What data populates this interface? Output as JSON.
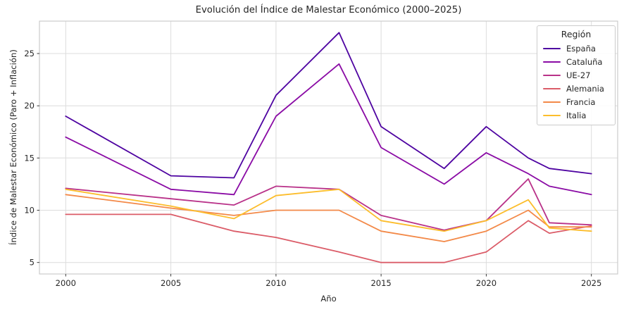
{
  "title": "Evolución del Índice de Malestar Económico (2000–2025)",
  "chart_data": {
    "type": "line",
    "title": "Evolución del Índice de Malestar Económico (2000–2025)",
    "xlabel": "Año",
    "ylabel": "Índice de Malestar Económico (Paro + Inflación)",
    "x": [
      2000,
      2005,
      2008,
      2010,
      2013,
      2015,
      2018,
      2020,
      2022,
      2023,
      2025
    ],
    "series": [
      {
        "name": "España",
        "color": "#4e03a1",
        "values": [
          19.0,
          13.3,
          13.1,
          21.0,
          27.0,
          18.0,
          14.0,
          18.0,
          15.0,
          14.0,
          13.5
        ]
      },
      {
        "name": "Cataluña",
        "color": "#8a0ba5",
        "values": [
          17.0,
          12.0,
          11.5,
          19.0,
          24.0,
          16.0,
          12.5,
          15.5,
          13.5,
          12.3,
          11.5
        ]
      },
      {
        "name": "UE-27",
        "color": "#b93289",
        "values": [
          12.1,
          11.1,
          10.5,
          12.3,
          12.0,
          9.5,
          8.1,
          9.0,
          13.0,
          8.8,
          8.6
        ]
      },
      {
        "name": "Alemania",
        "color": "#db5c68",
        "values": [
          9.6,
          9.6,
          8.0,
          7.4,
          6.0,
          5.0,
          5.0,
          6.0,
          9.0,
          7.8,
          8.5
        ]
      },
      {
        "name": "Francia",
        "color": "#f38948",
        "values": [
          11.5,
          10.2,
          9.5,
          10.0,
          10.0,
          8.0,
          7.0,
          8.0,
          10.0,
          8.4,
          8.4
        ]
      },
      {
        "name": "Italia",
        "color": "#fcbd2c",
        "values": [
          12.0,
          10.4,
          9.2,
          11.4,
          12.0,
          9.0,
          8.0,
          9.0,
          11.0,
          8.3,
          8.0
        ]
      }
    ],
    "xticks": [
      2000,
      2005,
      2010,
      2015,
      2020,
      2025
    ],
    "yticks": [
      5,
      10,
      15,
      20,
      25
    ],
    "xlim": [
      1998.75,
      2026.25
    ],
    "ylim": [
      3.9,
      28.1
    ],
    "grid": true,
    "legend": {
      "title": "Región",
      "position": "upper right"
    }
  },
  "style": {
    "grid_color": "#dcdcdc",
    "frame_color": "#cccccc",
    "tick_color": "#262626",
    "text_color": "#262626",
    "background": "#ffffff"
  }
}
